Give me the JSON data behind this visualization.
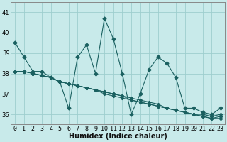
{
  "title": "",
  "xlabel": "Humidex (Indice chaleur)",
  "ylabel": "",
  "background_color": "#c8eaea",
  "grid_color": "#9ecece",
  "line_color": "#1a6060",
  "xlim": [
    -0.5,
    23.5
  ],
  "ylim": [
    35.5,
    41.5
  ],
  "xticks": [
    0,
    1,
    2,
    3,
    4,
    5,
    6,
    7,
    8,
    9,
    10,
    11,
    12,
    13,
    14,
    15,
    16,
    17,
    18,
    19,
    20,
    21,
    22,
    23
  ],
  "yticks": [
    36,
    37,
    38,
    39,
    40,
    41
  ],
  "series": [
    [
      39.5,
      38.8,
      38.1,
      38.1,
      37.8,
      37.6,
      36.3,
      38.8,
      39.4,
      38.0,
      40.7,
      39.7,
      38.0,
      36.0,
      37.0,
      38.2,
      38.8,
      38.5,
      37.8,
      36.3,
      36.3,
      36.1,
      36.0,
      36.3
    ],
    [
      38.1,
      38.1,
      38.0,
      37.9,
      37.8,
      37.6,
      37.5,
      37.4,
      37.3,
      37.2,
      37.0,
      36.9,
      36.8,
      36.7,
      36.6,
      36.5,
      36.4,
      36.3,
      36.2,
      36.1,
      36.0,
      35.9,
      35.8,
      35.8
    ],
    [
      38.1,
      38.1,
      38.0,
      37.9,
      37.8,
      37.6,
      37.5,
      37.4,
      37.3,
      37.2,
      37.1,
      37.0,
      36.9,
      36.7,
      36.6,
      36.5,
      36.4,
      36.3,
      36.2,
      36.1,
      36.0,
      35.9,
      35.8,
      35.9
    ],
    [
      38.1,
      38.1,
      38.0,
      37.9,
      37.8,
      37.6,
      37.5,
      37.4,
      37.3,
      37.2,
      37.1,
      37.0,
      36.9,
      36.8,
      36.7,
      36.6,
      36.5,
      36.3,
      36.2,
      36.1,
      36.0,
      36.0,
      35.9,
      36.0
    ]
  ],
  "marker": "D",
  "markersize": 2.5,
  "linewidth": 0.8,
  "tick_fontsize": 6,
  "xlabel_fontsize": 7
}
